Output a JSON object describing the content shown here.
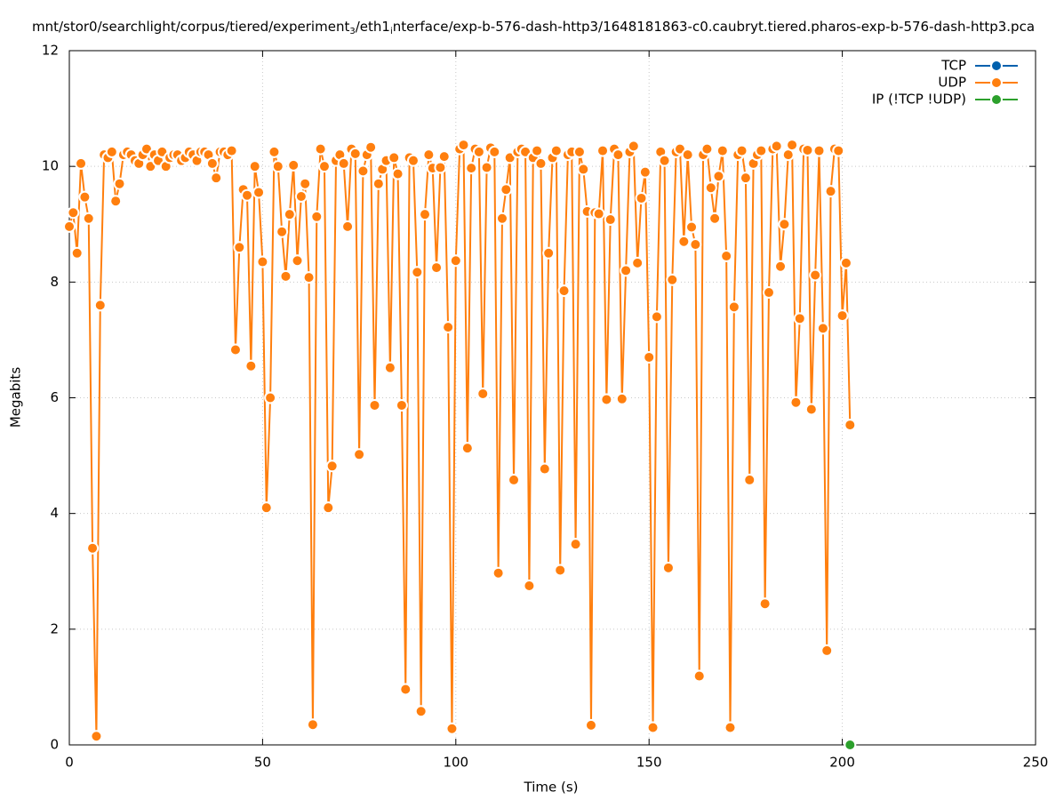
{
  "chart_data": {
    "type": "line",
    "title": [
      "mnt/stor0/searchlight/corpus/tiered/experiment",
      "3",
      "/eth1",
      "i",
      "nterface/exp-b-576-dash-http3/1648181863-c0.caubryt.tiered.pharos-exp-b-576-dash-http3.pca"
    ],
    "x_label": "Time (s)",
    "y_label": "Megabits",
    "xlim": [
      0,
      250
    ],
    "xticks": [
      0,
      50,
      100,
      150,
      200,
      250
    ],
    "ylim": [
      0,
      12
    ],
    "yticks": [
      0,
      2,
      4,
      6,
      8,
      10,
      12
    ],
    "grid": true,
    "legend": "top-right",
    "series": [
      {
        "name": "TCP",
        "color": "#0060ad",
        "x": [],
        "values": []
      },
      {
        "name": "UDP",
        "color": "#ff7f0e",
        "x": [
          0,
          1,
          2,
          3,
          4,
          5,
          6,
          7,
          8,
          9,
          10,
          11,
          12,
          13,
          14,
          15,
          16,
          17,
          18,
          19,
          20,
          21,
          22,
          23,
          24,
          25,
          26,
          27,
          28,
          29,
          30,
          31,
          32,
          33,
          34,
          35,
          36,
          37,
          38,
          39,
          40,
          41,
          42,
          43,
          44,
          45,
          46,
          47,
          48,
          49,
          50,
          51,
          52,
          53,
          54,
          55,
          56,
          57,
          58,
          59,
          60,
          61,
          62,
          63,
          64,
          65,
          66,
          67,
          68,
          69,
          70,
          71,
          72,
          73,
          74,
          75,
          76,
          77,
          78,
          79,
          80,
          81,
          82,
          83,
          84,
          85,
          86,
          87,
          88,
          89,
          90,
          91,
          92,
          93,
          94,
          95,
          96,
          97,
          98,
          99,
          100,
          101,
          102,
          103,
          104,
          105,
          106,
          107,
          108,
          109,
          110,
          111,
          112,
          113,
          114,
          115,
          116,
          117,
          118,
          119,
          120,
          121,
          122,
          123,
          124,
          125,
          126,
          127,
          128,
          129,
          130,
          131,
          132,
          133,
          134,
          135,
          136,
          137,
          138,
          139,
          140,
          141,
          142,
          143,
          144,
          145,
          146,
          147,
          148,
          149,
          150,
          151,
          152,
          153,
          154,
          155,
          156,
          157,
          158,
          159,
          160,
          161,
          162,
          163,
          164,
          165,
          166,
          167,
          168,
          169,
          170,
          171,
          172,
          173,
          174,
          175,
          176,
          177,
          178,
          179,
          180,
          181,
          182,
          183,
          184,
          185,
          186,
          187,
          188,
          189,
          190,
          191,
          192,
          193,
          194,
          195,
          196,
          197,
          198,
          199,
          200,
          201,
          202
        ],
        "values": [
          8.96,
          9.2,
          8.5,
          10.05,
          9.47,
          9.1,
          3.4,
          0.15,
          7.6,
          10.2,
          10.15,
          10.25,
          9.4,
          9.7,
          10.2,
          10.25,
          10.2,
          10.1,
          10.05,
          10.2,
          10.3,
          10.0,
          10.2,
          10.1,
          10.25,
          10.0,
          10.15,
          10.2,
          10.2,
          10.1,
          10.15,
          10.25,
          10.2,
          10.1,
          10.25,
          10.25,
          10.2,
          10.05,
          9.8,
          10.25,
          10.25,
          10.2,
          10.27,
          6.83,
          8.6,
          9.6,
          9.5,
          6.55,
          10.0,
          9.55,
          8.35,
          4.1,
          6.0,
          10.25,
          10.0,
          8.87,
          8.1,
          9.17,
          10.02,
          8.37,
          9.48,
          9.7,
          8.08,
          0.35,
          9.13,
          10.3,
          10.0,
          4.1,
          4.82,
          10.1,
          10.2,
          10.05,
          8.96,
          10.3,
          10.22,
          5.02,
          9.92,
          10.2,
          10.33,
          5.87,
          9.7,
          9.95,
          10.1,
          6.52,
          10.15,
          9.87,
          5.87,
          0.96,
          10.15,
          10.1,
          8.17,
          0.58,
          9.17,
          10.2,
          9.97,
          8.25,
          9.98,
          10.17,
          7.22,
          0.28,
          8.37,
          10.3,
          10.37,
          5.13,
          9.97,
          10.3,
          10.25,
          6.07,
          9.98,
          10.32,
          10.25,
          2.97,
          9.1,
          9.6,
          10.15,
          4.58,
          10.25,
          10.3,
          10.25,
          2.75,
          10.15,
          10.27,
          10.05,
          4.77,
          8.5,
          10.15,
          10.27,
          3.02,
          7.85,
          10.2,
          10.25,
          3.47,
          10.25,
          9.95,
          9.22,
          0.34,
          9.2,
          9.18,
          10.27,
          5.97,
          9.08,
          10.3,
          10.2,
          5.98,
          8.2,
          10.25,
          10.35,
          8.33,
          9.45,
          9.9,
          6.7,
          0.3,
          7.4,
          10.25,
          10.1,
          3.06,
          8.04,
          10.25,
          10.3,
          8.7,
          10.2,
          8.95,
          8.65,
          1.19,
          10.2,
          10.3,
          9.63,
          9.1,
          9.83,
          10.27,
          8.45,
          0.3,
          7.57,
          10.2,
          10.27,
          9.8,
          4.58,
          10.05,
          10.2,
          10.27,
          2.44,
          7.82,
          10.3,
          10.35,
          8.27,
          9.0,
          10.2,
          10.37,
          5.92,
          7.37,
          10.3,
          10.28,
          5.8,
          8.12,
          10.27,
          7.2,
          1.63,
          9.57,
          10.3,
          10.27,
          7.42,
          8.33,
          5.53
        ]
      },
      {
        "name": "IP (!TCP  !UDP)",
        "color": "#2ca02c",
        "x": [
          202
        ],
        "values": [
          0
        ]
      }
    ]
  }
}
